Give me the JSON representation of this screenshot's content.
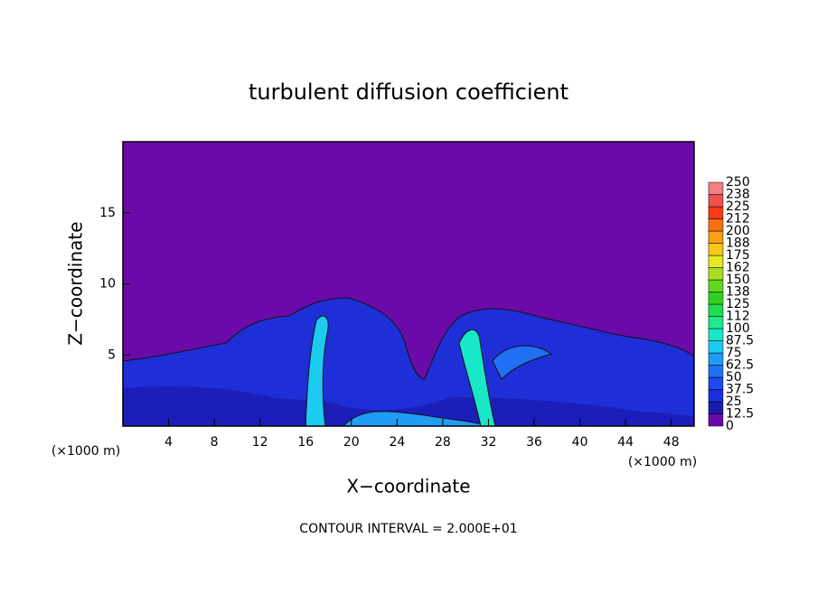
{
  "chart_data": {
    "type": "contour",
    "title": "turbulent diffusion coefficient",
    "x_label": "X−coordinate",
    "y_label": "Z−coordinate",
    "x_unit_left": "(×1000 m)",
    "x_unit_right": "(×1000 m)",
    "note": "CONTOUR INTERVAL = 2.000E+01",
    "xlim": [
      0,
      50
    ],
    "xticks": [
      4,
      8,
      12,
      16,
      20,
      24,
      28,
      32,
      36,
      40,
      44,
      48
    ],
    "ylim": [
      0,
      20
    ],
    "yticks": [
      5,
      10,
      15
    ],
    "colorbar": {
      "ticks": [
        0,
        12.5,
        25,
        37.5,
        50,
        62.5,
        75,
        87.5,
        100,
        {
          "value": 112.5,
          "label": "112"
        },
        125,
        {
          "value": 137.5,
          "label": "138"
        },
        150,
        {
          "value": 162.5,
          "label": "162"
        },
        175,
        {
          "value": 187.5,
          "label": "188"
        },
        200,
        {
          "value": 212.5,
          "label": "212"
        },
        225,
        {
          "value": 237.5,
          "label": "238"
        },
        250
      ],
      "colors": [
        "#6a0aa8",
        "#1a1ab0",
        "#1a2ee0",
        "#1e4af0",
        "#2070f5",
        "#1f9cf5",
        "#1ccbf0",
        "#18e8c8",
        "#1ee890",
        "#20dd50",
        "#30d020",
        "#60d820",
        "#a8e020",
        "#e8e820",
        "#f8c818",
        "#f8a010",
        "#f87010",
        "#f83a18",
        "#f05050",
        "#f08080"
      ]
    }
  }
}
